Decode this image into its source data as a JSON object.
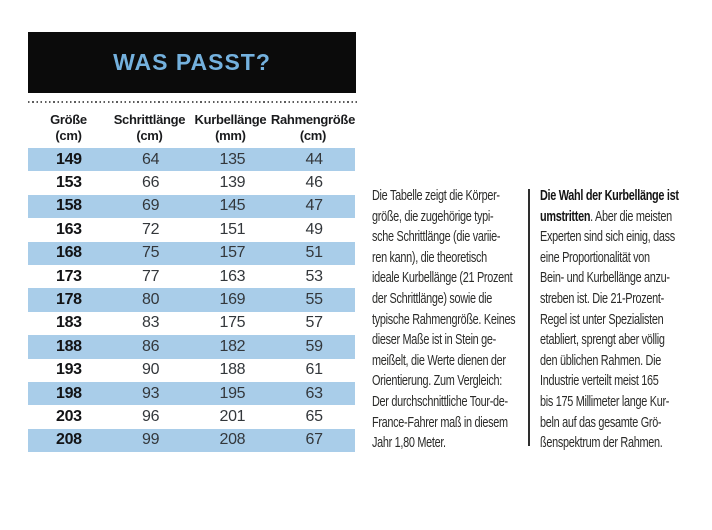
{
  "header": {
    "title": "WAS PASST?",
    "title_color": "#74b1de",
    "box_color": "#0b0b0b"
  },
  "table": {
    "stripe_color": "#a9cde9",
    "columns": [
      {
        "label": "Größe",
        "unit": "(cm)"
      },
      {
        "label": "Schrittlänge",
        "unit": "(cm)"
      },
      {
        "label": "Kurbellänge",
        "unit": "(mm)"
      },
      {
        "label": "Rahmengröße",
        "unit": "(cm)"
      }
    ],
    "rows": [
      [
        149,
        64,
        135,
        44
      ],
      [
        153,
        66,
        139,
        46
      ],
      [
        158,
        69,
        145,
        47
      ],
      [
        163,
        72,
        151,
        49
      ],
      [
        168,
        75,
        157,
        51
      ],
      [
        173,
        77,
        163,
        53
      ],
      [
        178,
        80,
        169,
        55
      ],
      [
        183,
        83,
        175,
        57
      ],
      [
        188,
        86,
        182,
        59
      ],
      [
        193,
        90,
        188,
        61
      ],
      [
        198,
        93,
        195,
        63
      ],
      [
        203,
        96,
        201,
        65
      ],
      [
        208,
        99,
        208,
        67
      ]
    ]
  },
  "text_columns": {
    "left": "Die Tabelle zeigt die Körper-\ngröße, die zugehörige typi-\nsche Schrittlänge (die variie-\nren kann), die theoretisch\nideale Kurbellänge (21 Prozent\nder Schrittlänge) sowie die\ntypische Rahmengröße. Keines\ndieser Maße ist in Stein ge-\nmeißelt, die Werte dienen der\nOrientierung. Zum Vergleich:\nDer durchschnittliche Tour-de-\nFrance-Fahrer maß in diesem\nJahr 1,80 Meter.",
    "right_bold_lead": "Die Wahl der Kurbellänge ist\numstritten",
    "right_rest": ". Aber die meisten\nExperten sind sich einig, dass\neine Proportionalität von\nBein- und Kurbellänge anzu-\nstreben ist. Die 21-Prozent-\nRegel ist unter Spezialisten\netabliert, sprengt aber völlig\nden üblichen Rahmen. Die\nIndustrie verteilt meist 165\nbis 175 Millimeter lange Kur-\nbeln auf das gesamte Grö-\nßenspektrum der Rahmen."
  }
}
